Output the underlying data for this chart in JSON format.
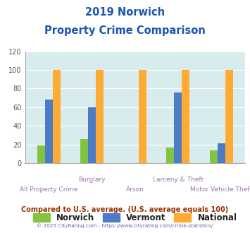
{
  "title_line1": "2019 Norwich",
  "title_line2": "Property Crime Comparison",
  "categories": [
    "All Property Crime",
    "Burglary",
    "Arson",
    "Larceny & Theft",
    "Motor Vehicle Theft"
  ],
  "cat_line1": [
    "",
    "Burglary",
    "",
    "Larceny & Theft",
    ""
  ],
  "cat_line2": [
    "All Property Crime",
    "",
    "Arson",
    "",
    "Motor Vehicle Theft"
  ],
  "norwich": [
    19,
    26,
    0,
    17,
    14
  ],
  "vermont": [
    68,
    60,
    0,
    76,
    21
  ],
  "national": [
    100,
    100,
    100,
    100,
    100
  ],
  "norwich_color": "#82c341",
  "vermont_color": "#4d7cc7",
  "national_color": "#ffaa33",
  "ylim": [
    0,
    120
  ],
  "yticks": [
    0,
    20,
    40,
    60,
    80,
    100,
    120
  ],
  "plot_bg": "#d8ecee",
  "title_color": "#1a56b0",
  "xlabel_color": "#9977aa",
  "footer_text": "Compared to U.S. average. (U.S. average equals 100)",
  "footer_color": "#993300",
  "credit_text": "© 2025 CityRating.com - https://www.cityrating.com/crime-statistics/",
  "credit_color": "#6666aa",
  "legend_labels": [
    "Norwich",
    "Vermont",
    "National"
  ]
}
